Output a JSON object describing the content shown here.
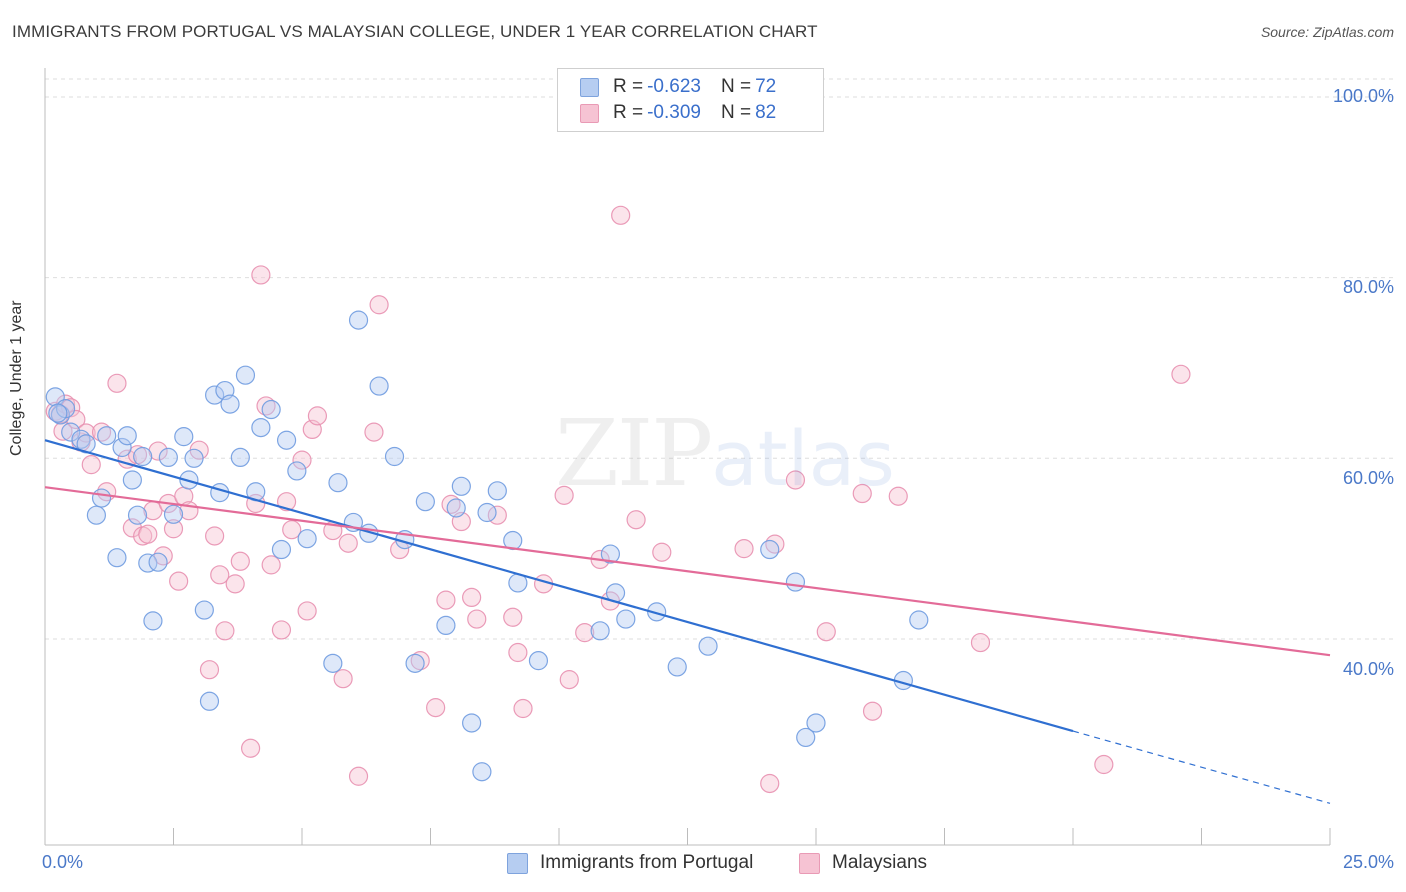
{
  "header": {
    "title": "IMMIGRANTS FROM PORTUGAL VS MALAYSIAN COLLEGE, UNDER 1 YEAR CORRELATION CHART",
    "source": "Source: ZipAtlas.com"
  },
  "watermark": {
    "zip": "ZIP",
    "atlas": "atlas"
  },
  "legend_stats": [
    {
      "r_label": "R = ",
      "r_value": "-0.623",
      "n_label": "N = ",
      "n_value": "72"
    },
    {
      "r_label": "R = ",
      "r_value": "-0.309",
      "n_label": "N = ",
      "n_value": "82"
    }
  ],
  "colors": {
    "blue": "#6f9be0",
    "blue_line": "#2f6fd1",
    "pink": "#ec8fb0",
    "pink_line": "#e36b98",
    "axis_text": "#4a78c8"
  },
  "chart_data": {
    "type": "scatter",
    "title": "IMMIGRANTS FROM PORTUGAL VS MALAYSIAN COLLEGE, UNDER 1 YEAR CORRELATION CHART",
    "ylabel": "College, Under 1 year",
    "xlabel": "",
    "xlim": [
      0,
      25
    ],
    "ylim": [
      19,
      102
    ],
    "x_tick_labels": [
      "0.0%",
      "25.0%"
    ],
    "y_ticks": [
      40,
      60,
      80,
      100
    ],
    "y_tick_labels": [
      "40.0%",
      "60.0%",
      "80.0%",
      "100.0%"
    ],
    "grid": "horizontal dashed",
    "legend_position": "bottom-center",
    "series": [
      {
        "name": "Immigrants from Portugal",
        "color": "#6f9be0",
        "r": -0.623,
        "n": 72,
        "trend": {
          "x": [
            0,
            20
          ],
          "y": [
            62.0,
            29.8
          ],
          "dashed_to": [
            25,
            21.8
          ]
        },
        "points": [
          [
            0.2,
            66.8
          ],
          [
            0.3,
            64.8
          ],
          [
            0.4,
            65.5
          ],
          [
            0.5,
            62.9
          ],
          [
            0.7,
            62.1
          ],
          [
            0.8,
            61.6
          ],
          [
            1.0,
            53.7
          ],
          [
            1.1,
            55.6
          ],
          [
            1.2,
            62.5
          ],
          [
            1.4,
            49.0
          ],
          [
            1.5,
            61.2
          ],
          [
            1.6,
            62.5
          ],
          [
            1.7,
            57.6
          ],
          [
            1.8,
            53.7
          ],
          [
            1.9,
            60.2
          ],
          [
            2.0,
            48.4
          ],
          [
            2.1,
            42.0
          ],
          [
            2.2,
            48.5
          ],
          [
            2.4,
            60.1
          ],
          [
            2.5,
            53.8
          ],
          [
            2.7,
            62.4
          ],
          [
            2.8,
            57.6
          ],
          [
            2.9,
            60.0
          ],
          [
            3.1,
            43.2
          ],
          [
            3.2,
            33.1
          ],
          [
            3.3,
            67.0
          ],
          [
            3.4,
            56.2
          ],
          [
            3.5,
            67.5
          ],
          [
            3.6,
            66.0
          ],
          [
            3.8,
            60.1
          ],
          [
            3.9,
            69.2
          ],
          [
            4.1,
            56.3
          ],
          [
            4.2,
            63.4
          ],
          [
            4.4,
            65.4
          ],
          [
            4.6,
            49.9
          ],
          [
            4.7,
            62.0
          ],
          [
            4.9,
            58.6
          ],
          [
            5.1,
            51.1
          ],
          [
            5.6,
            37.3
          ],
          [
            5.7,
            57.3
          ],
          [
            6.0,
            52.9
          ],
          [
            6.1,
            75.3
          ],
          [
            6.3,
            51.7
          ],
          [
            6.5,
            68.0
          ],
          [
            6.8,
            60.2
          ],
          [
            7.0,
            51.0
          ],
          [
            7.2,
            37.3
          ],
          [
            7.4,
            55.2
          ],
          [
            7.8,
            41.5
          ],
          [
            8.0,
            54.5
          ],
          [
            8.1,
            56.9
          ],
          [
            8.3,
            30.7
          ],
          [
            8.5,
            25.3
          ],
          [
            8.6,
            54.0
          ],
          [
            8.8,
            56.4
          ],
          [
            9.1,
            50.9
          ],
          [
            9.2,
            46.2
          ],
          [
            9.6,
            37.6
          ],
          [
            10.8,
            40.9
          ],
          [
            11.0,
            49.4
          ],
          [
            11.1,
            45.1
          ],
          [
            11.3,
            42.2
          ],
          [
            11.9,
            43.0
          ],
          [
            12.3,
            36.9
          ],
          [
            12.9,
            39.2
          ],
          [
            14.1,
            49.9
          ],
          [
            14.6,
            46.3
          ],
          [
            14.8,
            29.1
          ],
          [
            15.0,
            30.7
          ],
          [
            16.7,
            35.4
          ],
          [
            17.0,
            42.1
          ],
          [
            0.25,
            65.0
          ]
        ]
      },
      {
        "name": "Malaysians",
        "color": "#ec8fb0",
        "r": -0.309,
        "n": 82,
        "trend": {
          "x": [
            0,
            25
          ],
          "y": [
            56.8,
            38.2
          ]
        },
        "points": [
          [
            0.2,
            65.2
          ],
          [
            0.3,
            64.9
          ],
          [
            0.4,
            66.0
          ],
          [
            0.5,
            65.6
          ],
          [
            0.6,
            64.3
          ],
          [
            0.7,
            61.8
          ],
          [
            0.8,
            62.8
          ],
          [
            0.9,
            59.3
          ],
          [
            1.1,
            62.9
          ],
          [
            1.2,
            56.3
          ],
          [
            1.4,
            68.3
          ],
          [
            1.6,
            59.9
          ],
          [
            1.7,
            52.3
          ],
          [
            1.8,
            60.4
          ],
          [
            1.9,
            51.4
          ],
          [
            2.0,
            51.6
          ],
          [
            2.1,
            54.2
          ],
          [
            2.2,
            60.8
          ],
          [
            2.4,
            55.0
          ],
          [
            2.5,
            52.2
          ],
          [
            2.6,
            46.4
          ],
          [
            2.7,
            55.8
          ],
          [
            2.8,
            54.2
          ],
          [
            3.0,
            60.9
          ],
          [
            3.2,
            36.6
          ],
          [
            3.3,
            51.4
          ],
          [
            3.4,
            47.1
          ],
          [
            3.5,
            40.9
          ],
          [
            3.7,
            46.1
          ],
          [
            3.8,
            48.6
          ],
          [
            4.0,
            27.9
          ],
          [
            4.1,
            55.0
          ],
          [
            4.2,
            80.3
          ],
          [
            4.3,
            65.8
          ],
          [
            4.4,
            48.2
          ],
          [
            4.6,
            41.0
          ],
          [
            4.7,
            55.2
          ],
          [
            4.8,
            52.1
          ],
          [
            5.0,
            59.8
          ],
          [
            5.1,
            43.1
          ],
          [
            5.2,
            63.2
          ],
          [
            5.3,
            64.7
          ],
          [
            5.6,
            52.0
          ],
          [
            5.8,
            35.6
          ],
          [
            5.9,
            50.6
          ],
          [
            6.1,
            24.8
          ],
          [
            6.4,
            62.9
          ],
          [
            6.5,
            77.0
          ],
          [
            6.9,
            49.9
          ],
          [
            7.3,
            37.6
          ],
          [
            7.6,
            32.4
          ],
          [
            7.8,
            44.3
          ],
          [
            7.9,
            54.9
          ],
          [
            8.1,
            53.0
          ],
          [
            8.3,
            44.6
          ],
          [
            8.4,
            42.2
          ],
          [
            8.8,
            53.7
          ],
          [
            9.1,
            42.4
          ],
          [
            9.2,
            38.5
          ],
          [
            9.3,
            32.3
          ],
          [
            9.7,
            46.1
          ],
          [
            10.1,
            55.9
          ],
          [
            10.2,
            35.5
          ],
          [
            10.5,
            40.7
          ],
          [
            10.8,
            48.8
          ],
          [
            11.0,
            44.2
          ],
          [
            11.2,
            86.9
          ],
          [
            11.5,
            53.2
          ],
          [
            12.0,
            49.6
          ],
          [
            13.6,
            50.0
          ],
          [
            14.1,
            24.0
          ],
          [
            14.2,
            50.5
          ],
          [
            14.6,
            57.6
          ],
          [
            15.2,
            40.8
          ],
          [
            15.9,
            56.1
          ],
          [
            16.1,
            32.0
          ],
          [
            16.6,
            55.8
          ],
          [
            18.2,
            39.6
          ],
          [
            20.6,
            26.1
          ],
          [
            22.1,
            69.3
          ],
          [
            0.35,
            63.0
          ],
          [
            2.3,
            49.2
          ]
        ]
      }
    ]
  },
  "bottom_legend": [
    {
      "label": "Immigrants from Portugal"
    },
    {
      "label": "Malaysians"
    }
  ]
}
